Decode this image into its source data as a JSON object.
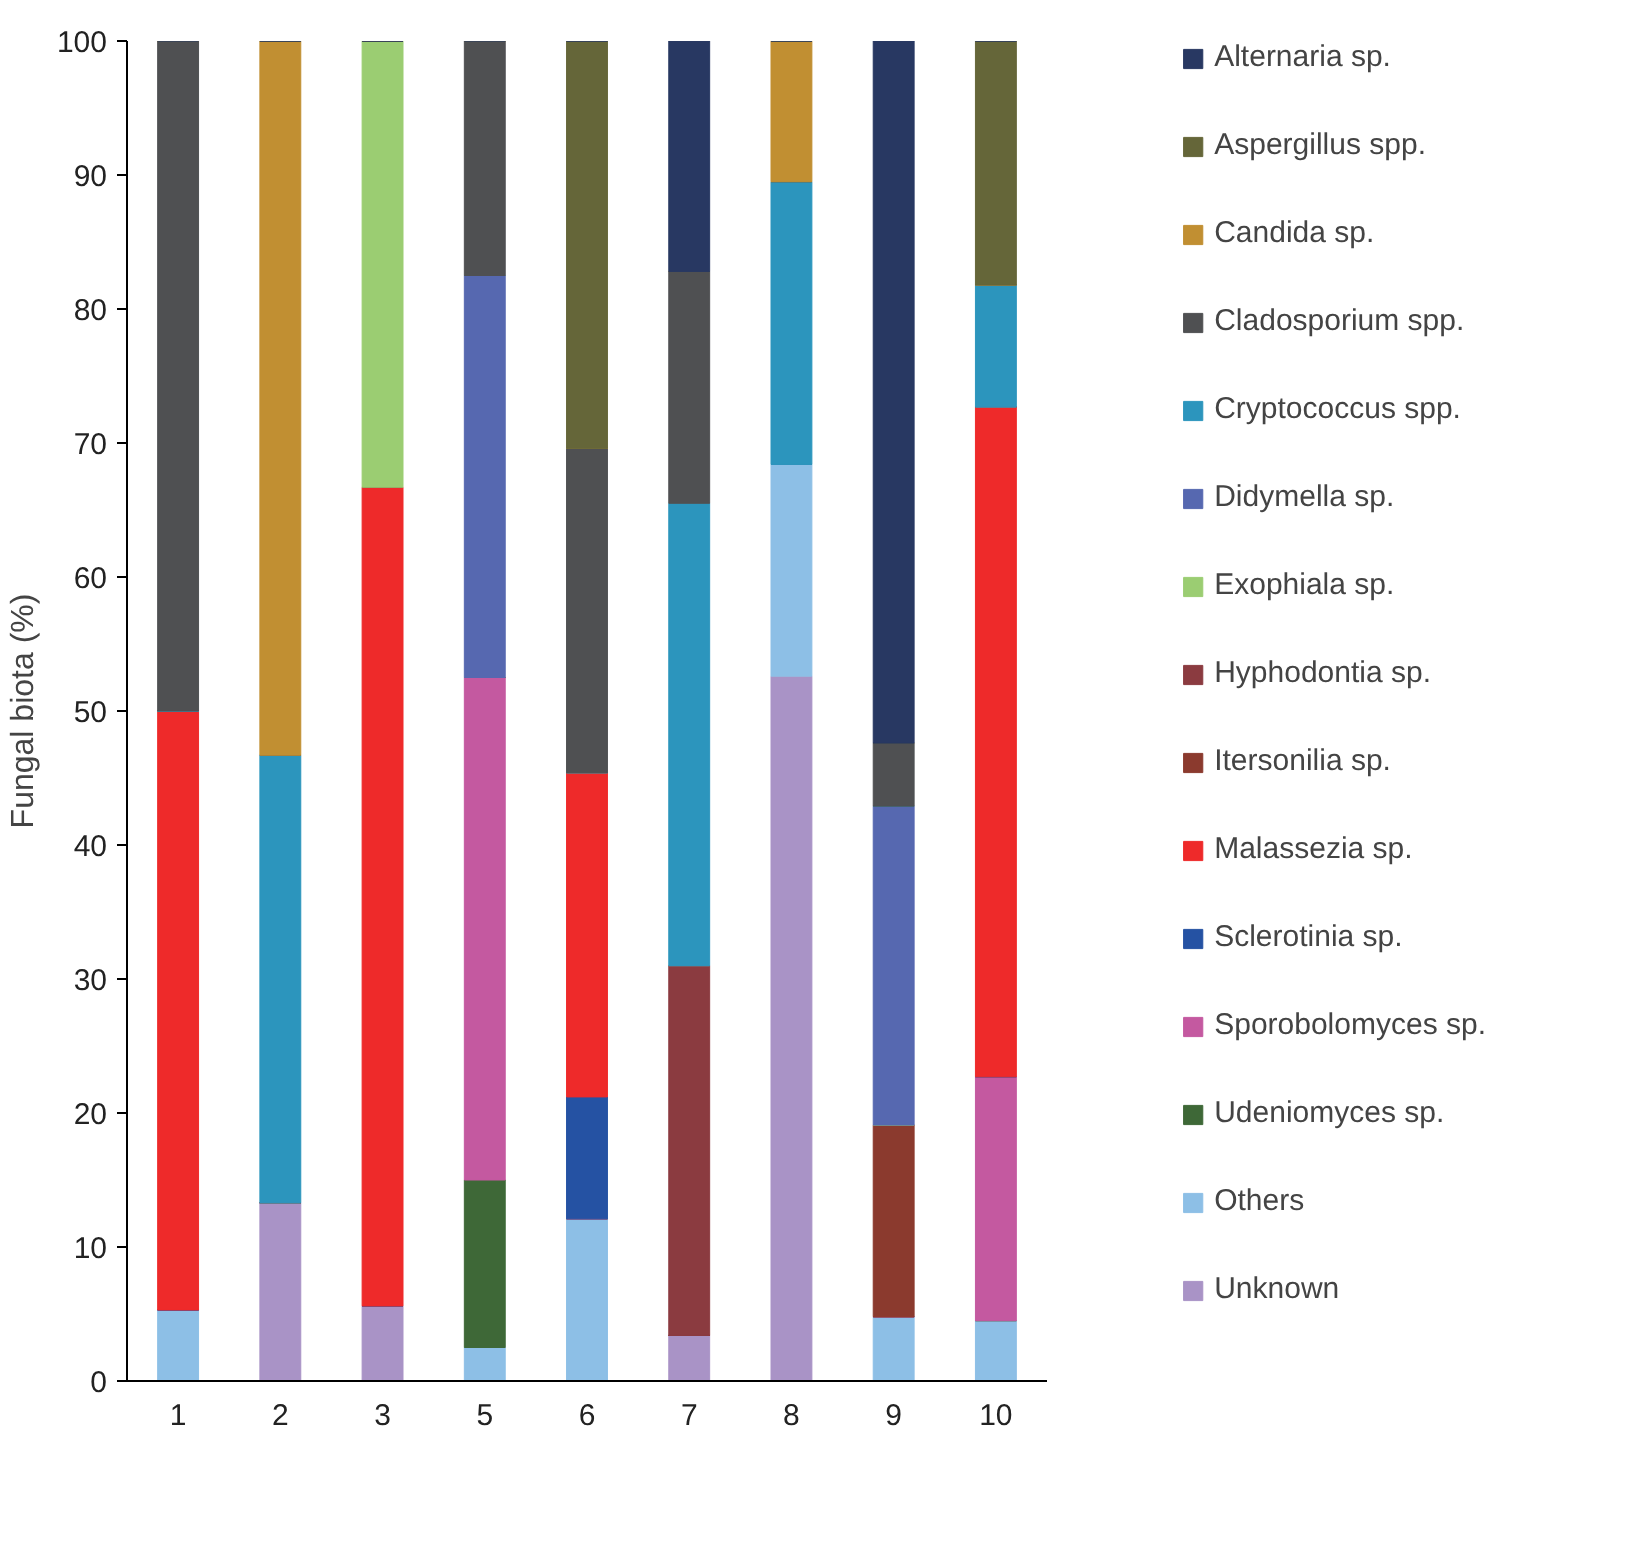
{
  "chart_data": {
    "type": "bar",
    "stacked": true,
    "ylabel": "Fungal biota (%)",
    "categories": [
      "1",
      "2",
      "3",
      "5",
      "6",
      "7",
      "8",
      "9",
      "10"
    ],
    "ylim": [
      0,
      100
    ],
    "yticks": [
      0,
      10,
      20,
      30,
      40,
      50,
      60,
      70,
      80,
      90,
      100
    ],
    "grid": false,
    "legend": "right",
    "series": [
      {
        "name": "Unknown",
        "color": "#a993c6",
        "values": [
          0,
          13.3,
          5.6,
          0,
          0,
          3.4,
          52.6,
          0,
          0
        ]
      },
      {
        "name": "Others",
        "color": "#8dbfe6",
        "values": [
          5.3,
          0,
          0,
          2.5,
          12.1,
          0,
          15.8,
          4.8,
          4.5
        ]
      },
      {
        "name": "Udeniomyces sp.",
        "color": "#3e6837",
        "values": [
          0,
          0,
          0,
          12.5,
          0,
          0,
          0,
          0,
          0
        ]
      },
      {
        "name": "Sporobolomyces sp.",
        "color": "#c459a0",
        "values": [
          0,
          0,
          0,
          37.5,
          0,
          0,
          0,
          0,
          18.2
        ]
      },
      {
        "name": "Sclerotinia sp.",
        "color": "#2552a3",
        "values": [
          0,
          0,
          0,
          0,
          9.1,
          0,
          0,
          0,
          0
        ]
      },
      {
        "name": "Malassezia sp.",
        "color": "#ee2a2a",
        "values": [
          44.7,
          0,
          61.1,
          0,
          24.2,
          0,
          0,
          0,
          50
        ]
      },
      {
        "name": "Itersonilia sp.",
        "color": "#8b3a2e",
        "values": [
          0,
          0,
          0,
          0,
          0,
          0,
          0,
          14.3,
          0
        ]
      },
      {
        "name": "Hyphodontia sp.",
        "color": "#8b3b40",
        "values": [
          0,
          0,
          0,
          0,
          0,
          27.6,
          0,
          0,
          0
        ]
      },
      {
        "name": "Exophiala sp.",
        "color": "#9bcd72",
        "values": [
          0,
          0,
          33.3,
          0,
          0,
          0,
          0,
          0,
          0
        ]
      },
      {
        "name": "Didymella sp.",
        "color": "#5668b0",
        "values": [
          0,
          0,
          0,
          30,
          0,
          0,
          0,
          23.8,
          0
        ]
      },
      {
        "name": "Cryptococcus spp.",
        "color": "#2c95bd",
        "values": [
          0,
          33.4,
          0,
          0,
          0,
          34.5,
          21.1,
          0,
          9.1
        ]
      },
      {
        "name": "Cladosporium spp.",
        "color": "#4f5052",
        "values": [
          50,
          0,
          0,
          17.5,
          24.2,
          17.3,
          0,
          4.7,
          0
        ]
      },
      {
        "name": "Candida sp.",
        "color": "#c18f32",
        "values": [
          0,
          53.3,
          0,
          0,
          0,
          0,
          10.5,
          0,
          0
        ]
      },
      {
        "name": "Aspergillus spp.",
        "color": "#656639",
        "values": [
          0,
          0,
          0,
          0,
          30.4,
          0,
          0,
          0,
          18.2
        ]
      },
      {
        "name": "Alternaria sp.",
        "color": "#283862",
        "values": [
          0,
          0,
          0,
          0,
          0,
          17.2,
          0,
          52.4,
          0
        ]
      }
    ]
  }
}
